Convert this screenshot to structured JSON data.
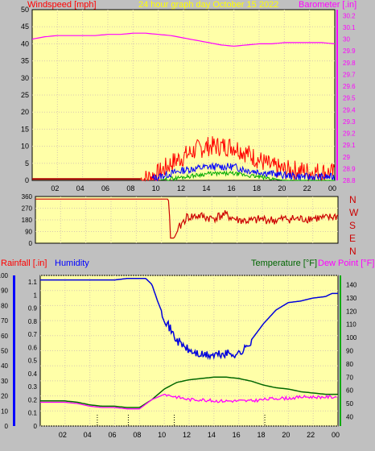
{
  "header": {
    "windspeed_label": "Windspeed [mph]",
    "title": "24 hour graph day   October 15 2022",
    "barometer_label": "Barometer [.in]"
  },
  "compass": [
    "N",
    "W",
    "S",
    "E",
    "N"
  ],
  "footer": {
    "rainfall_label": "Rainfall [.in]",
    "humidity_label": "Humidity",
    "temperature_label": "Temperature [°F]",
    "dewpoint_label": "Dew Point [°F]"
  },
  "colors": {
    "background": "#c0c0c0",
    "plot_bg": "#ffffa8",
    "grid": "#d8c8b0",
    "gust": "#ff0000",
    "avg_wind": "#0000ff",
    "low_wind": "#00aa00",
    "barometer": "#ff00ff",
    "direction": "#cc0000",
    "humidity": "#0000dd",
    "temperature": "#006600",
    "dewpoint": "#ff00ff",
    "rainfall": "#ff0000",
    "title": "#ffff00"
  },
  "chart_data": [
    {
      "type": "line",
      "title": "24 hour graph day   October 15 2022",
      "xlabel": "",
      "x_ticks": [
        "02",
        "04",
        "06",
        "08",
        "10",
        "12",
        "14",
        "16",
        "18",
        "20",
        "22",
        "00"
      ],
      "y_left_label": "Windspeed [mph]",
      "y_left_ticks": [
        0,
        5,
        10,
        15,
        20,
        25,
        30,
        35,
        40,
        45,
        50
      ],
      "ylim_left": [
        0,
        50
      ],
      "y_right_label": "Barometer [.in]",
      "y_right_ticks": [
        28.8,
        28.9,
        29.0,
        29.1,
        29.2,
        29.3,
        29.4,
        29.5,
        29.6,
        29.7,
        29.8,
        29.9,
        30.0,
        30.1,
        30.2
      ],
      "ylim_right": [
        28.8,
        30.25
      ],
      "x_range_hours": [
        0,
        24
      ],
      "series": [
        {
          "axis": "right",
          "x_hours": [
            0,
            1,
            2,
            3,
            4,
            5,
            6,
            7,
            8,
            9,
            10,
            11,
            12,
            13,
            14,
            15,
            16,
            17,
            18,
            19,
            20,
            21,
            22,
            23,
            24
          ],
          "values": [
            30.0,
            30.02,
            30.03,
            30.03,
            30.03,
            30.03,
            30.04,
            30.04,
            30.05,
            30.05,
            30.04,
            30.03,
            30.01,
            29.99,
            29.97,
            29.95,
            29.94,
            29.95,
            29.96,
            29.96,
            29.97,
            29.97,
            29.97,
            29.97,
            29.96
          ]
        },
        {
          "axis": "left",
          "x_hours": [
            0,
            8,
            9,
            10,
            11,
            12,
            13,
            14,
            15,
            16,
            17,
            18,
            19,
            20,
            21,
            22,
            23,
            24
          ],
          "values": [
            0,
            0,
            0.5,
            2,
            5,
            7,
            9,
            10,
            10,
            10,
            8,
            6,
            4,
            3,
            3,
            2.5,
            2.5,
            2
          ]
        },
        {
          "axis": "left",
          "x_hours": [
            0,
            9,
            10,
            11,
            12,
            13,
            14,
            15,
            16,
            17,
            18,
            19,
            20,
            21,
            22,
            23,
            24
          ],
          "values": [
            0,
            0,
            1,
            2,
            3,
            3.5,
            4,
            4,
            4,
            3,
            2.5,
            2,
            1.5,
            1.2,
            1,
            1,
            1
          ]
        },
        {
          "axis": "left",
          "x_hours": [
            0,
            10,
            11,
            12,
            13,
            14,
            15,
            16,
            17,
            18,
            19,
            20,
            24
          ],
          "values": [
            0,
            0,
            0.5,
            1,
            1.5,
            2,
            2,
            2,
            1.5,
            1,
            0.5,
            0,
            0
          ]
        }
      ]
    },
    {
      "type": "line",
      "x_ticks": [],
      "y_left_ticks": [
        0,
        90,
        180,
        270,
        360
      ],
      "ylim": [
        0,
        360
      ],
      "y_right_labels": [
        "N",
        "W",
        "S",
        "E",
        "N"
      ],
      "series": [
        {
          "x_hours": [
            0,
            10.5,
            10.6,
            10.7,
            11.0,
            11.3,
            11.6,
            12,
            13,
            14,
            15,
            16,
            17,
            18,
            19,
            20,
            21,
            22,
            23,
            24
          ],
          "values": [
            340,
            340,
            320,
            40,
            40,
            100,
            150,
            200,
            210,
            190,
            220,
            180,
            170,
            185,
            175,
            190,
            185,
            195,
            190,
            210
          ]
        }
      ]
    },
    {
      "type": "line",
      "x_ticks": [
        "02",
        "04",
        "06",
        "08",
        "10",
        "12",
        "14",
        "16",
        "18",
        "20",
        "22",
        "00"
      ],
      "y_left_label": "Rainfall [.in]",
      "y_left_ticks": [
        0,
        10,
        20,
        30,
        40,
        50,
        60,
        70,
        80,
        90,
        100
      ],
      "y_left2_ticks": [
        0,
        0.1,
        0.2,
        0.3,
        0.4,
        0.5,
        0.6,
        0.7,
        0.8,
        0.9,
        1,
        1.1
      ],
      "ylim_humidity": [
        0,
        100
      ],
      "ylim_rainfall": [
        0,
        1.15
      ],
      "y_right_label": "Temperature [°F]",
      "y_right_ticks": [
        40,
        50,
        60,
        70,
        80,
        90,
        100,
        110,
        120,
        130,
        140
      ],
      "ylim_right": [
        33,
        147
      ],
      "series": [
        {
          "name": "Humidity",
          "axis": "humidity",
          "x_hours": [
            0,
            1,
            2,
            3,
            4,
            5,
            6,
            7,
            8,
            8.5,
            9,
            9.5,
            10,
            10.5,
            11,
            12,
            13,
            14,
            15,
            16,
            16.5,
            17,
            18,
            19,
            20,
            21,
            22,
            23,
            23.5,
            24
          ],
          "values": [
            97,
            97,
            97,
            97,
            97,
            97,
            97,
            98,
            98,
            98,
            94,
            82,
            72,
            64,
            57,
            50,
            47,
            47,
            48,
            48,
            51,
            57,
            68,
            77,
            82,
            83,
            85,
            86,
            88,
            88
          ]
        },
        {
          "name": "Temperature [°F]",
          "axis": "right",
          "x_hours": [
            0,
            1,
            2,
            3,
            4,
            5,
            6,
            7,
            8,
            9,
            10,
            11,
            12,
            13,
            14,
            15,
            16,
            17,
            18,
            19,
            20,
            21,
            22,
            23,
            24
          ],
          "values": [
            52,
            52,
            52,
            51,
            49,
            48,
            48,
            47,
            47,
            53,
            61,
            66,
            68,
            69,
            70,
            70,
            69,
            67,
            64,
            62,
            61,
            59,
            58,
            57,
            57
          ]
        },
        {
          "name": "Dew Point [°F]",
          "axis": "right",
          "x_hours": [
            0,
            1,
            2,
            3,
            4,
            5,
            6,
            7,
            8,
            9,
            10,
            11,
            12,
            13,
            14,
            15,
            16,
            17,
            18,
            19,
            20,
            21,
            22,
            23,
            24
          ],
          "values": [
            51,
            51,
            51,
            50,
            48,
            47,
            47,
            46,
            46,
            53,
            57,
            55,
            53,
            53,
            52,
            52,
            52,
            52,
            53,
            54,
            54,
            55,
            55,
            55,
            55
          ]
        }
      ]
    }
  ]
}
